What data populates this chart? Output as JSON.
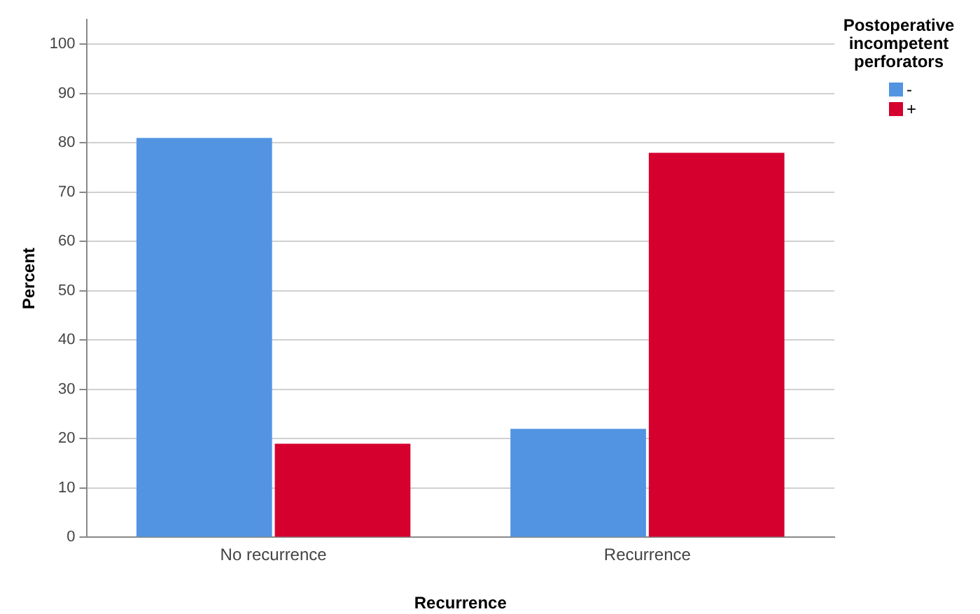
{
  "chart_data": {
    "type": "bar",
    "xlabel": "Recurrence",
    "ylabel": "Percent",
    "legend_title": "Postoperative incompetent perforators",
    "categories": [
      "No recurrence",
      "Recurrence"
    ],
    "series": [
      {
        "name": "-",
        "color": "#5294e2",
        "values": [
          81,
          22
        ]
      },
      {
        "name": "+",
        "color": "#d5002e",
        "values": [
          19,
          78
        ]
      }
    ],
    "ylim": [
      0,
      105
    ],
    "yticks": [
      0,
      10,
      20,
      30,
      40,
      50,
      60,
      70,
      80,
      90,
      100
    ],
    "grid": "y",
    "legend": "top right"
  }
}
